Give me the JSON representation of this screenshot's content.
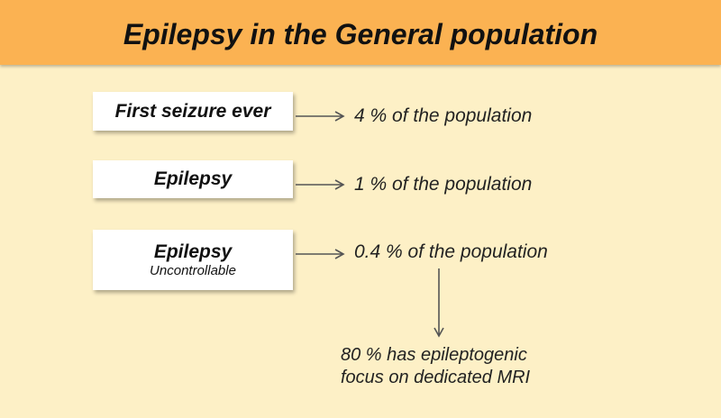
{
  "title": "Epilepsy in the General population",
  "rows": [
    {
      "label": "First seizure ever",
      "result": "4 % of the population"
    },
    {
      "label": "Epilepsy",
      "result": "1 % of the population"
    },
    {
      "label": "Epilepsy",
      "sublabel": "Uncontrollable",
      "result": "0.4 % of the population"
    }
  ],
  "note": [
    "80 % has epileptogenic",
    "focus on dedicated MRI"
  ]
}
